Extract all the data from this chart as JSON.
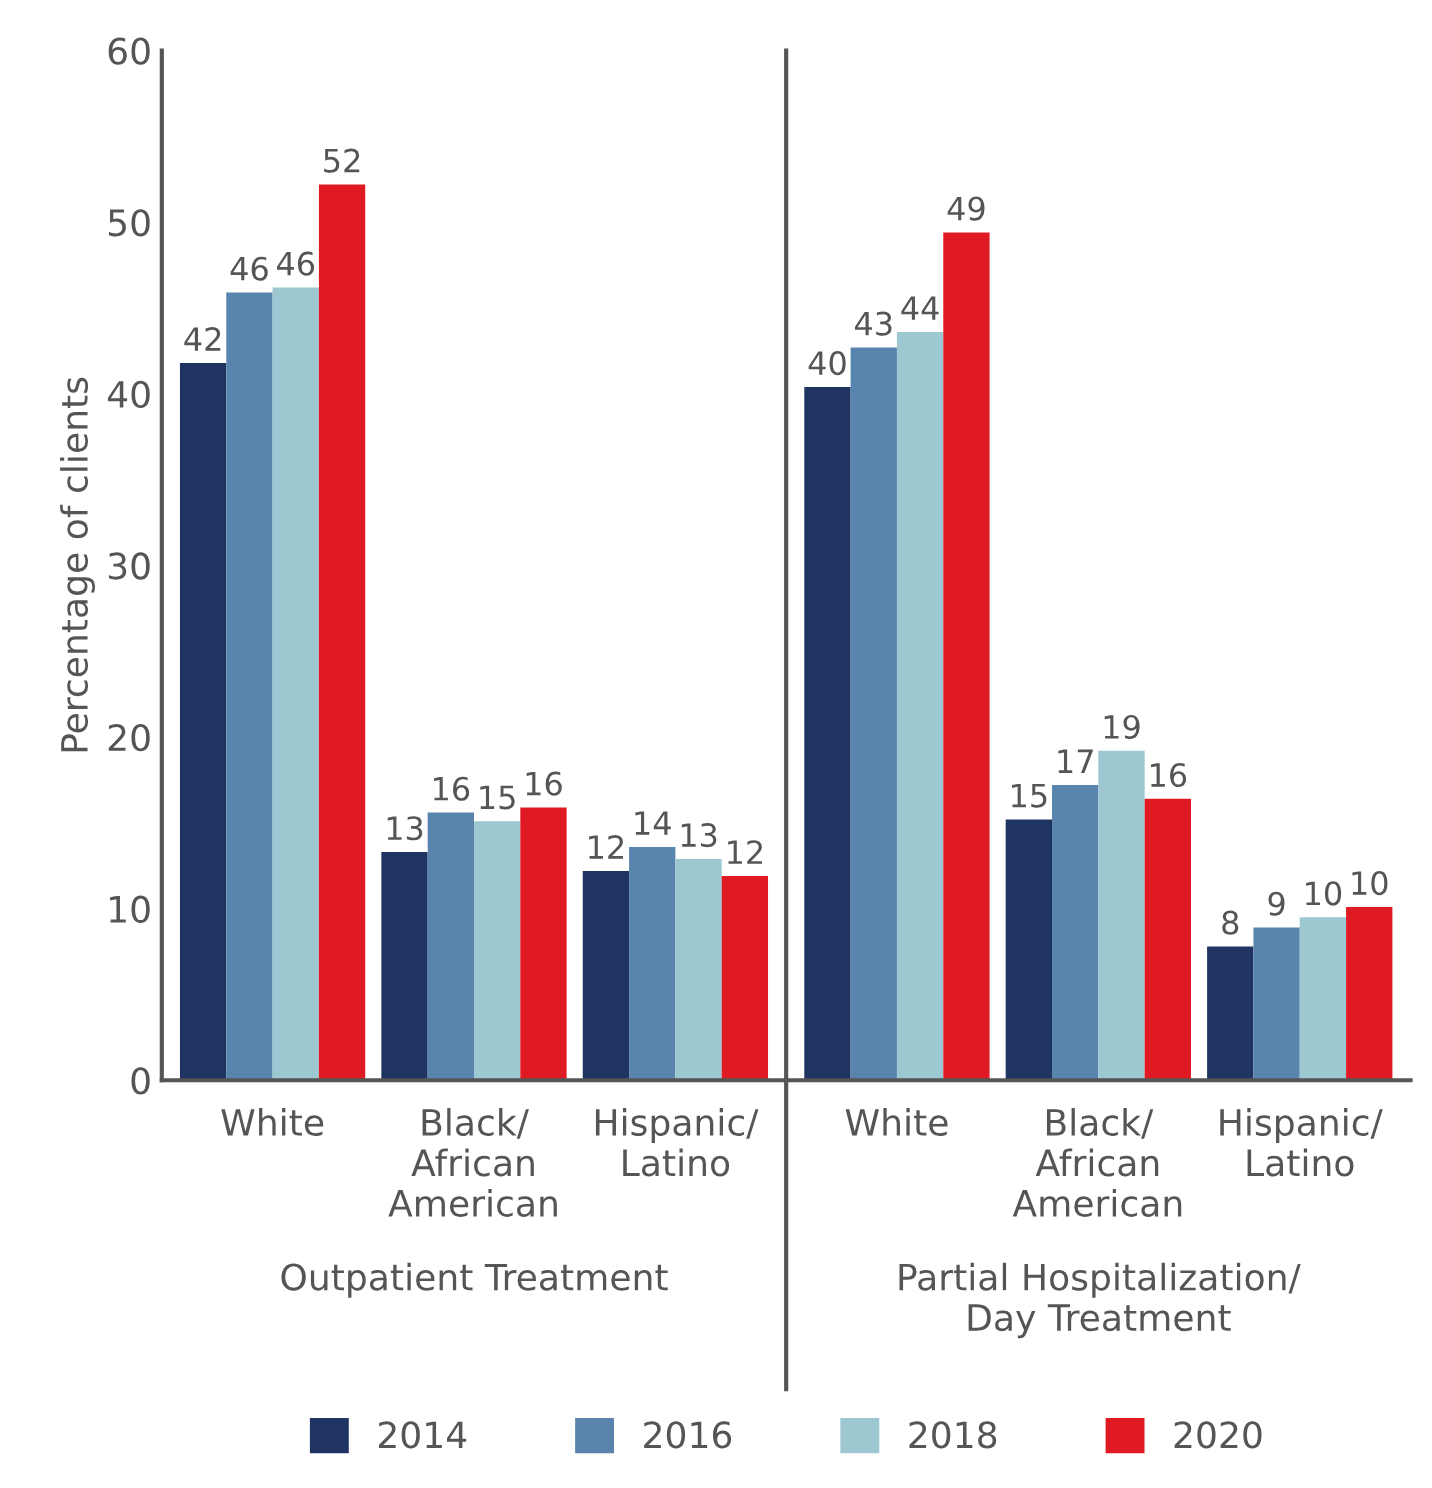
{
  "chart_data": [
    {
      "type": "bar",
      "xlabel": "Outpatient Treatment",
      "ylabel": "Percentage of clients",
      "categories": [
        "White",
        "Black/\nAfrican\nAmerican",
        "Hispanic/\nLatino"
      ],
      "ylim": [
        0,
        60
      ],
      "yticks": [
        0,
        10,
        20,
        30,
        40,
        50,
        60
      ],
      "grid": false,
      "legend": "bottom",
      "series": [
        {
          "name": "2014",
          "color": "#1f3461",
          "values": [
            41.8,
            13.3,
            12.2
          ],
          "value_labels": [
            "42",
            "13",
            "12"
          ]
        },
        {
          "name": "2016",
          "color": "#5884ad",
          "values": [
            45.9,
            15.6,
            13.6
          ],
          "value_labels": [
            "46",
            "16",
            "14"
          ]
        },
        {
          "name": "2018",
          "color": "#9dc8d2",
          "values": [
            46.2,
            15.1,
            12.9
          ],
          "value_labels": [
            "46",
            "15",
            "13"
          ]
        },
        {
          "name": "2020",
          "color": "#e01a22",
          "values": [
            52.2,
            15.9,
            11.9
          ],
          "value_labels": [
            "52",
            "16",
            "12"
          ]
        }
      ]
    },
    {
      "type": "bar",
      "xlabel": "Partial Hospitalization/\nDay Treatment",
      "categories": [
        "White",
        "Black/\nAfrican\nAmerican",
        "Hispanic/\nLatino"
      ],
      "ylim": [
        0,
        60
      ],
      "tick_labels": "x",
      "grid": false,
      "series": [
        {
          "name": "2014",
          "color": "#1f3461",
          "values": [
            40.4,
            15.2,
            7.8
          ],
          "value_labels": [
            "40",
            "15",
            "8"
          ]
        },
        {
          "name": "2016",
          "color": "#5884ad",
          "values": [
            42.7,
            17.2,
            8.9
          ],
          "value_labels": [
            "43",
            "17",
            "9"
          ]
        },
        {
          "name": "2018",
          "color": "#9dc8d2",
          "values": [
            43.6,
            19.2,
            9.5
          ],
          "value_labels": [
            "44",
            "19",
            "10"
          ]
        },
        {
          "name": "2020",
          "color": "#e01a22",
          "values": [
            49.4,
            16.4,
            10.1
          ],
          "value_labels": [
            "49",
            "16",
            "10"
          ]
        }
      ]
    }
  ]
}
